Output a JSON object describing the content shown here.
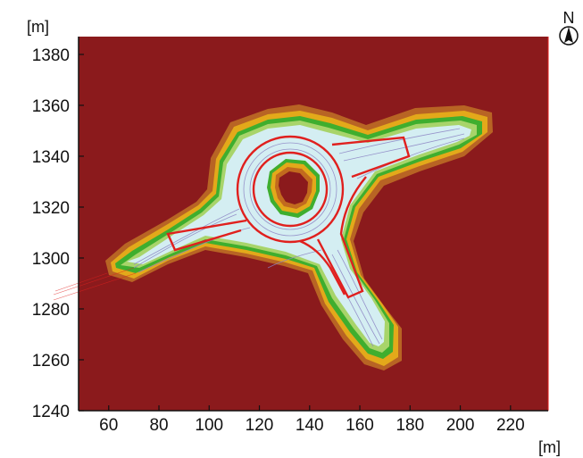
{
  "figure": {
    "y_unit": "[m]",
    "x_unit": "[m]",
    "compass_label": "N",
    "background_color": "#8B1A1C",
    "colors": {
      "level_1": "#C26A1E",
      "level_2": "#E3A91A",
      "level_3": "#3FAE2E",
      "level_4": "#A8D46A",
      "open": "#D4EEF2",
      "outline": "#E0201E",
      "tracks": "#8C84C4"
    }
  },
  "chart_data": {
    "type": "heatmap",
    "xlim": [
      48,
      235
    ],
    "ylim": [
      1240,
      1387
    ],
    "x_ticks": [
      "60",
      "80",
      "100",
      "120",
      "140",
      "160",
      "180",
      "200",
      "220"
    ],
    "y_ticks": [
      "1240",
      "1260",
      "1280",
      "1300",
      "1320",
      "1340",
      "1360",
      "1380"
    ],
    "x_tick_values": [
      60,
      80,
      100,
      120,
      140,
      160,
      180,
      200,
      220
    ],
    "y_tick_values": [
      1240,
      1260,
      1280,
      1300,
      1320,
      1340,
      1360,
      1380
    ],
    "roundabout_center": [
      134,
      1323
    ],
    "roundabout_outer_radius": 19,
    "roundabout_inner_radius": 14
  }
}
